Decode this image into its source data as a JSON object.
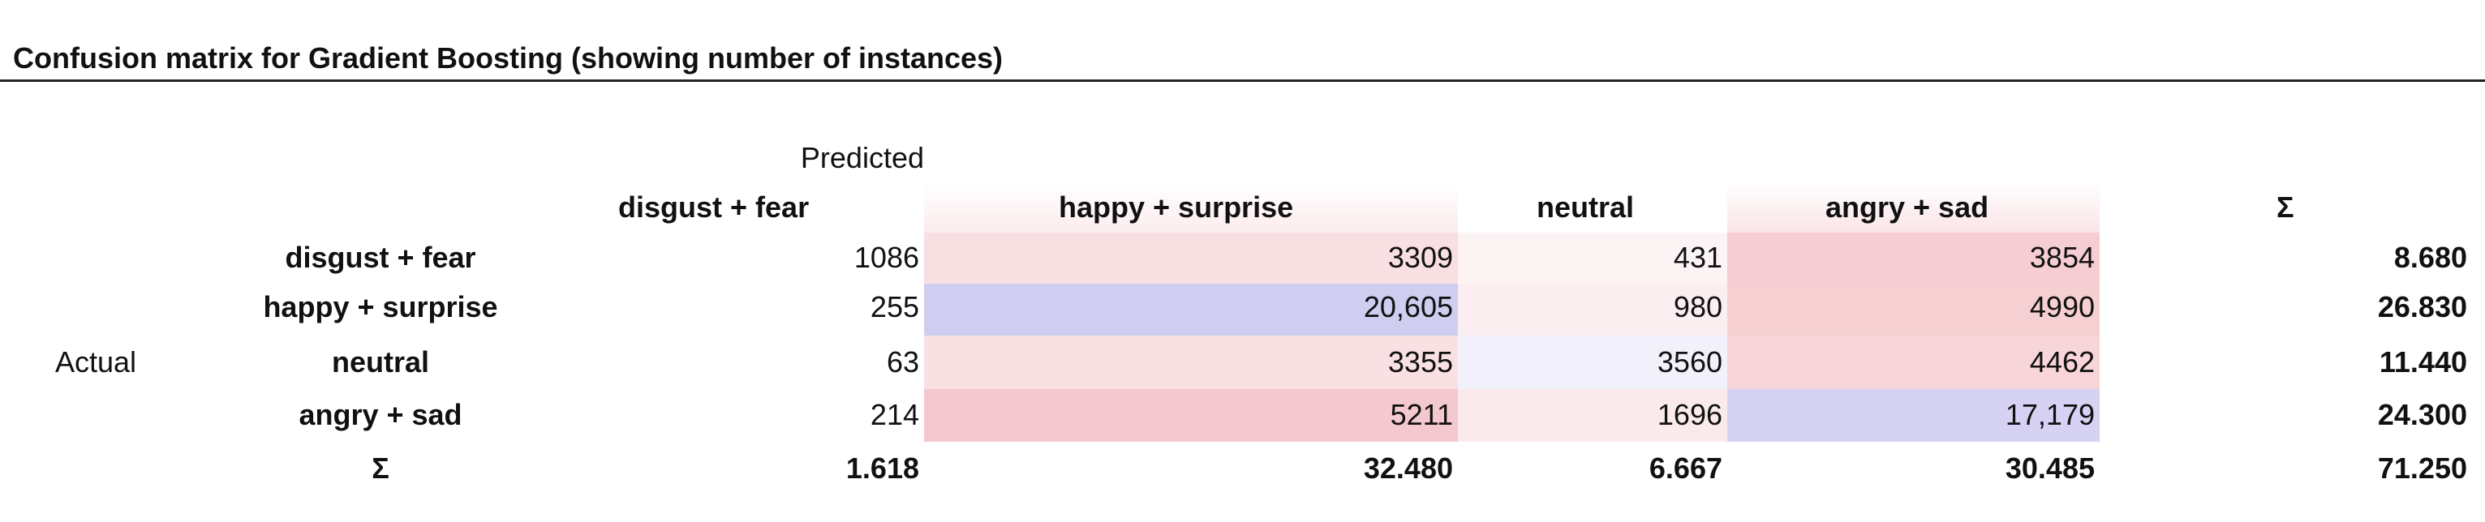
{
  "title": "Confusion matrix for Gradient Boosting (showing number of instances)",
  "predicted_label": "Predicted",
  "actual_label": "Actual",
  "columns": [
    "disgust + fear",
    "happy + surprise",
    "neutral",
    "angry + sad",
    "Σ"
  ],
  "rows": [
    {
      "label": "disgust + fear",
      "cells": [
        "1086",
        "3309",
        "431",
        "3854",
        "8.680"
      ]
    },
    {
      "label": "happy + surprise",
      "cells": [
        "255",
        "20,605",
        "980",
        "4990",
        "26.830"
      ]
    },
    {
      "label": "neutral",
      "cells": [
        "63",
        "3355",
        "3560",
        "4462",
        "11.440"
      ]
    },
    {
      "label": "angry + sad",
      "cells": [
        "214",
        "5211",
        "1696",
        "17,179",
        "24.300"
      ]
    }
  ],
  "totals": {
    "label": "Σ",
    "cells": [
      "1.618",
      "32.480",
      "6.667",
      "30.485",
      "71.250"
    ]
  }
}
